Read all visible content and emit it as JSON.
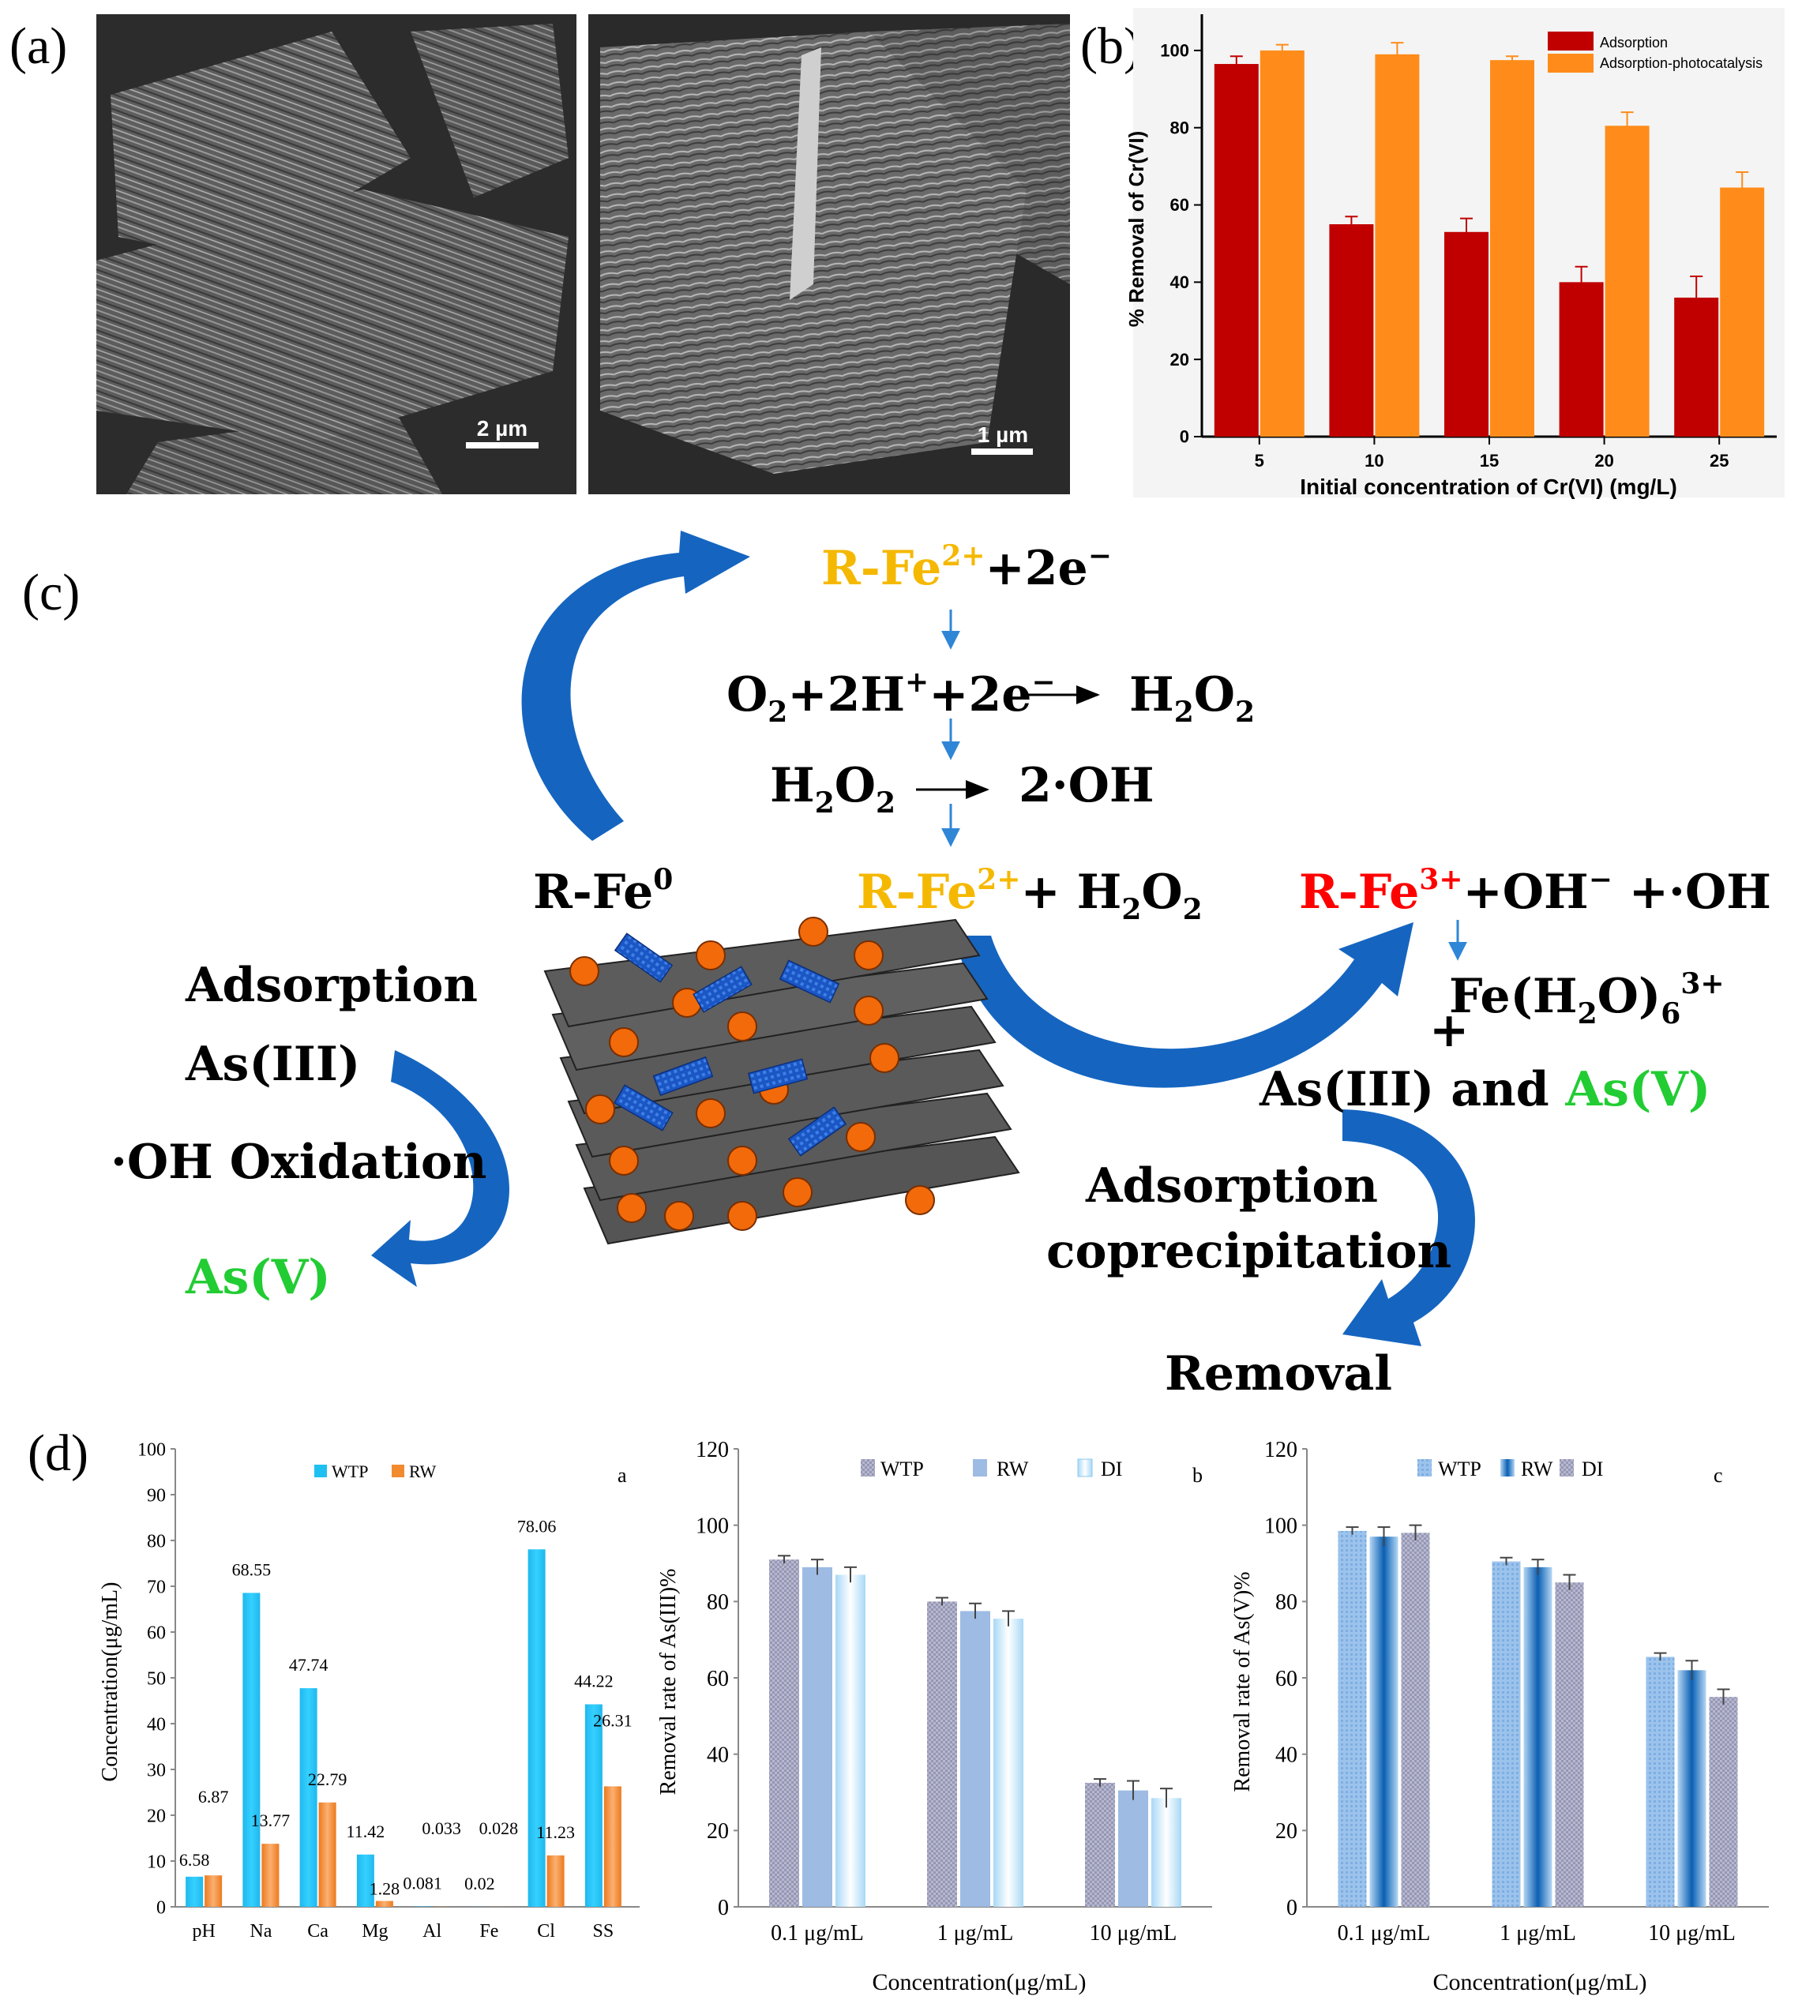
{
  "panels": {
    "a": "(a)",
    "b": "(b)",
    "c": "(c)",
    "d": "(d)"
  },
  "sem": {
    "scale1": "2 µm",
    "scale2": "1 µm"
  },
  "colors": {
    "adsorption": "#c00000",
    "photo": "#ff8c1a",
    "wtp_d1": "#1ec0f2",
    "rw_d1": "#f28a30",
    "wtp_grey": "#a7a9c4",
    "rw_blue": "#9dbbe3",
    "di_light": "#a9d6f5",
    "blue_arrow": "#1565c0",
    "yellow": "#f5b800",
    "red": "#ff0000",
    "green": "#22cc33"
  },
  "chart_data": [
    {
      "id": "b",
      "type": "bar",
      "categories": [
        "5",
        "10",
        "15",
        "20",
        "25"
      ],
      "series": [
        {
          "name": "Adsorption",
          "values": [
            96.5,
            55,
            53,
            40,
            36
          ],
          "errors": [
            2,
            2,
            3.5,
            4,
            5.5
          ]
        },
        {
          "name": "Adsorption-photocatalysis",
          "values": [
            100,
            99,
            97.5,
            80.5,
            64.5
          ],
          "errors": [
            1.5,
            3,
            1,
            3.5,
            4
          ]
        }
      ],
      "xlabel": "Initial concentration of Cr(VI) (mg/L)",
      "ylabel": "% Removal of Cr(VI)",
      "ylim": [
        0,
        110
      ],
      "yticks": [
        0,
        20,
        40,
        60,
        80,
        100
      ]
    },
    {
      "id": "d_a",
      "type": "bar",
      "tag": "a",
      "categories": [
        "pH",
        "Na",
        "Ca",
        "Mg",
        "Al",
        "Fe",
        "Cl",
        "SS"
      ],
      "series": [
        {
          "name": "WTP",
          "values": [
            6.58,
            68.55,
            47.74,
            11.42,
            0.081,
            0.02,
            78.06,
            44.22
          ],
          "labels": [
            "6.58",
            "68.55",
            "47.74",
            "11.42",
            "0.081",
            "0.02",
            "78.06",
            "44.22"
          ]
        },
        {
          "name": "RW",
          "values": [
            6.87,
            13.77,
            22.79,
            1.28,
            0.033,
            0.028,
            11.23,
            26.31
          ],
          "labels": [
            "6.87",
            "13.77",
            "22.79",
            "1.28",
            "0.033",
            "0.028",
            "11.23",
            "26.31"
          ]
        }
      ],
      "ylabel": "Concentration(μg/mL)",
      "ylim": [
        0,
        100
      ],
      "yticks": [
        0,
        10,
        20,
        30,
        40,
        50,
        60,
        70,
        80,
        90,
        100
      ]
    },
    {
      "id": "d_b",
      "type": "bar",
      "tag": "b",
      "categories": [
        "0.1 μg/mL",
        "1 μg/mL",
        "10 μg/mL"
      ],
      "series": [
        {
          "name": "WTP",
          "values": [
            91,
            80,
            32.5
          ],
          "errors": [
            1,
            1,
            1
          ]
        },
        {
          "name": "RW",
          "values": [
            89,
            77.5,
            30.5
          ],
          "errors": [
            2,
            2,
            2.5
          ]
        },
        {
          "name": "DI",
          "values": [
            87,
            75.5,
            28.5
          ],
          "errors": [
            2,
            2,
            2.5
          ]
        }
      ],
      "xlabel": "Concentration(μg/mL)",
      "ylabel": "Removal rate of As(III)%",
      "ylim": [
        0,
        120
      ],
      "yticks": [
        0,
        20,
        40,
        60,
        80,
        100,
        120
      ]
    },
    {
      "id": "d_c",
      "type": "bar",
      "tag": "c",
      "categories": [
        "0.1 μg/mL",
        "1 μg/mL",
        "10 μg/mL"
      ],
      "series": [
        {
          "name": "WTP",
          "values": [
            98.5,
            90.5,
            65.5
          ],
          "errors": [
            1,
            1,
            1
          ]
        },
        {
          "name": "RW",
          "values": [
            97,
            89,
            62
          ],
          "errors": [
            2.5,
            2,
            2.5
          ]
        },
        {
          "name": "DI",
          "values": [
            98,
            85,
            55
          ],
          "errors": [
            2,
            2,
            2
          ]
        }
      ],
      "xlabel": "Concentration(μg/mL)",
      "ylabel": "Removal rate of As(V)%",
      "ylim": [
        0,
        120
      ],
      "yticks": [
        0,
        20,
        40,
        60,
        80,
        100,
        120
      ]
    }
  ],
  "scheme": {
    "l1_a": "R-Fe",
    "l1_sup": "2+",
    "l1_b": "+2e",
    "l2_a": "O",
    "l2_b": "+2H",
    "l2_c": "+2e",
    "l2_d": "H",
    "l2_e": "O",
    "l3_a": "H",
    "l3_b": "O",
    "l3_c": "2·OH",
    "fe0": "R-Fe",
    "fe0_sup": "0",
    "mid_a": "R-Fe",
    "mid_sup": "2+",
    "mid_b": "+ H",
    "mid_c": "O",
    "right_a": "R-Fe",
    "right_sup": "3+",
    "right_b": "+OH",
    "right_c": " +·OH",
    "hydrate_a": "Fe(H",
    "hydrate_b": "O)",
    "hydrate_sub": "6",
    "hydrate_sup": "3+",
    "plus": "+",
    "as_line_a": "As(III) and ",
    "as_line_b": "As(V)",
    "left_adsorption": "Adsorption",
    "left_as3": "As(III)",
    "left_ox": "·OH Oxidation",
    "left_as5": "As(V)",
    "right_adsorption": "Adsorption",
    "right_coprec": "coprecipitation",
    "removal": "Removal",
    "sub2": "2",
    "minus": "−",
    "plus_sup": "+"
  }
}
